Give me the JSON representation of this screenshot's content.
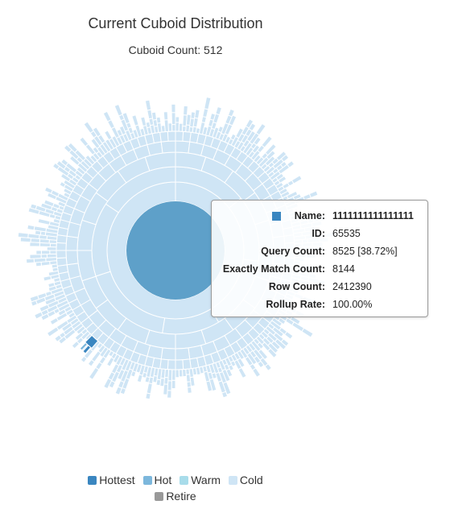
{
  "colors": {
    "hottest": "#3a86c0",
    "hot": "#7cb7dc",
    "warm": "#a8dcea",
    "cold": "#cfe5f5",
    "retire": "#999999",
    "center": "#5ea0c9"
  },
  "chart_data": {
    "type": "sunburst",
    "title": "Current Cuboid Distribution",
    "subtitle": "Cuboid Count: 512",
    "legend": {
      "position": "bottom",
      "entries": [
        "Hottest",
        "Hot",
        "Warm",
        "Cold",
        "Retire"
      ]
    },
    "root": {
      "name": "1111111111111111",
      "id": "65535",
      "query_count": "8525 [38.72%]",
      "exactly_match_count": "8144",
      "row_count": "2412390",
      "rollup_rate": "100.00%",
      "level": "Hottest"
    },
    "cuboid_count": 512
  },
  "tooltip": {
    "rows": [
      {
        "label": "Name:",
        "value": "1111111111111111"
      },
      {
        "label": "ID:",
        "value": "65535"
      },
      {
        "label": "Query Count:",
        "value": "8525 [38.72%]"
      },
      {
        "label": "Exactly Match Count:",
        "value": "8144"
      },
      {
        "label": "Row Count:",
        "value": "2412390"
      },
      {
        "label": "Rollup Rate:",
        "value": "100.00%"
      }
    ]
  }
}
